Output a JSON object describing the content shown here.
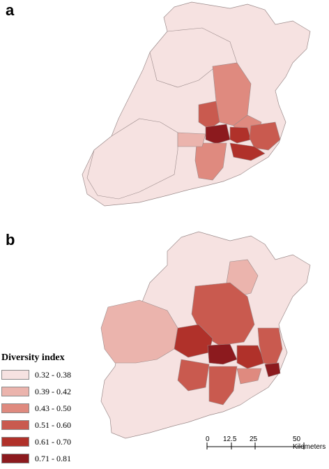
{
  "panels": [
    {
      "letter": "a"
    },
    {
      "letter": "b"
    }
  ],
  "legend": {
    "title": "Diversity index",
    "classes": [
      {
        "label": "0.32 - 0.38",
        "color": "#f6e2e1"
      },
      {
        "label": "0.39 - 0.42",
        "color": "#ebb4ad"
      },
      {
        "label": "0.43 - 0.50",
        "color": "#df8a7f"
      },
      {
        "label": "0.51 - 0.60",
        "color": "#c95a4f"
      },
      {
        "label": "0.61 - 0.70",
        "color": "#b0312a"
      },
      {
        "label": "0.71 - 0.81",
        "color": "#8c1a1e"
      }
    ]
  },
  "scalebar": {
    "ticks": [
      "0",
      "12.5",
      "25",
      "50 Kilometers"
    ]
  },
  "colors": {
    "outline": "#9a8a8a",
    "water": "#ffffff"
  }
}
